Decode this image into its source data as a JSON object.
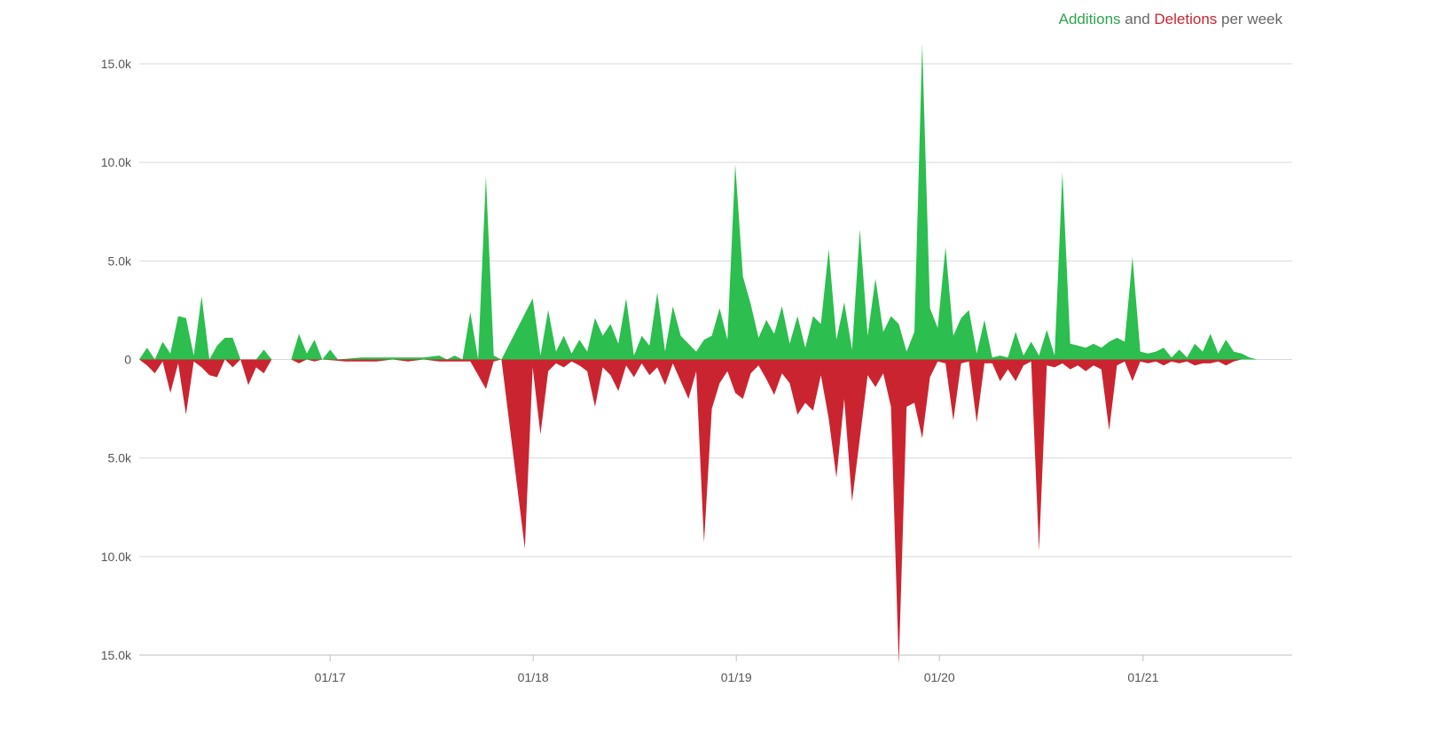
{
  "legend": {
    "additions_label": "Additions",
    "joiner": "and",
    "deletions_label": "Deletions",
    "suffix": "per week"
  },
  "colors": {
    "additions": "#2cbe4e",
    "deletions": "#cb2431",
    "grid": "#d9d9d9"
  },
  "chart_data": {
    "type": "area",
    "title": "",
    "legend": [
      "Additions",
      "Deletions"
    ],
    "y_ticks": [
      "15.0k",
      "10.0k",
      "5.0k",
      "0",
      "5.0k",
      "10.0k",
      "15.0k"
    ],
    "ylim": [
      -15000,
      15000
    ],
    "x_ticks": [
      {
        "label": "01/17",
        "x": "2017-01-01"
      },
      {
        "label": "01/18",
        "x": "2018-01-01"
      },
      {
        "label": "01/19",
        "x": "2019-01-01"
      },
      {
        "label": "01/20",
        "x": "2020-01-01"
      },
      {
        "label": "01/21",
        "x": "2021-01-01"
      }
    ],
    "xlim": [
      "2016-01-24",
      "2021-09-26"
    ],
    "grid": true,
    "legend_position": "top-right",
    "series": [
      {
        "name": "Additions",
        "points": [
          [
            "2016-01-24",
            0
          ],
          [
            "2016-02-07",
            600
          ],
          [
            "2016-02-21",
            0
          ],
          [
            "2016-03-06",
            900
          ],
          [
            "2016-03-20",
            300
          ],
          [
            "2016-04-03",
            2200
          ],
          [
            "2016-04-17",
            2100
          ],
          [
            "2016-05-01",
            200
          ],
          [
            "2016-05-15",
            3200
          ],
          [
            "2016-05-29",
            0
          ],
          [
            "2016-06-12",
            700
          ],
          [
            "2016-06-26",
            1100
          ],
          [
            "2016-07-10",
            1100
          ],
          [
            "2016-07-24",
            0
          ],
          [
            "2016-08-21",
            0
          ],
          [
            "2016-09-04",
            500
          ],
          [
            "2016-09-18",
            0
          ],
          [
            "2016-10-23",
            0
          ],
          [
            "2016-11-06",
            1300
          ],
          [
            "2016-11-20",
            300
          ],
          [
            "2016-12-04",
            1000
          ],
          [
            "2016-12-18",
            0
          ],
          [
            "2017-01-01",
            500
          ],
          [
            "2017-01-15",
            0
          ],
          [
            "2017-02-26",
            100
          ],
          [
            "2017-03-26",
            100
          ],
          [
            "2017-04-23",
            100
          ],
          [
            "2017-05-21",
            100
          ],
          [
            "2017-06-18",
            100
          ],
          [
            "2017-07-16",
            200
          ],
          [
            "2017-07-30",
            0
          ],
          [
            "2017-08-13",
            200
          ],
          [
            "2017-08-27",
            0
          ],
          [
            "2017-09-10",
            2400
          ],
          [
            "2017-09-24",
            0
          ],
          [
            "2017-10-08",
            9300
          ],
          [
            "2017-10-22",
            200
          ],
          [
            "2017-11-05",
            0
          ],
          [
            "2017-12-31",
            3100
          ],
          [
            "2018-01-14",
            200
          ],
          [
            "2018-01-28",
            2500
          ],
          [
            "2018-02-11",
            400
          ],
          [
            "2018-02-25",
            1200
          ],
          [
            "2018-03-11",
            300
          ],
          [
            "2018-03-25",
            1000
          ],
          [
            "2018-04-08",
            400
          ],
          [
            "2018-04-22",
            2100
          ],
          [
            "2018-05-06",
            1200
          ],
          [
            "2018-05-20",
            1800
          ],
          [
            "2018-06-03",
            800
          ],
          [
            "2018-06-17",
            3100
          ],
          [
            "2018-07-01",
            200
          ],
          [
            "2018-07-15",
            1200
          ],
          [
            "2018-07-29",
            700
          ],
          [
            "2018-08-12",
            3400
          ],
          [
            "2018-08-26",
            400
          ],
          [
            "2018-09-09",
            2700
          ],
          [
            "2018-09-23",
            1200
          ],
          [
            "2018-10-07",
            800
          ],
          [
            "2018-10-21",
            400
          ],
          [
            "2018-11-04",
            1000
          ],
          [
            "2018-11-18",
            1200
          ],
          [
            "2018-12-02",
            2600
          ],
          [
            "2018-12-16",
            1000
          ],
          [
            "2018-12-30",
            9900
          ],
          [
            "2019-01-13",
            4200
          ],
          [
            "2019-01-27",
            2800
          ],
          [
            "2019-02-10",
            1100
          ],
          [
            "2019-02-24",
            2000
          ],
          [
            "2019-03-10",
            1300
          ],
          [
            "2019-03-24",
            2700
          ],
          [
            "2019-04-07",
            800
          ],
          [
            "2019-04-21",
            2200
          ],
          [
            "2019-05-05",
            600
          ],
          [
            "2019-05-19",
            2200
          ],
          [
            "2019-06-02",
            1800
          ],
          [
            "2019-06-16",
            5600
          ],
          [
            "2019-06-30",
            1000
          ],
          [
            "2019-07-14",
            2900
          ],
          [
            "2019-07-28",
            500
          ],
          [
            "2019-08-11",
            6600
          ],
          [
            "2019-08-25",
            1200
          ],
          [
            "2019-09-08",
            4100
          ],
          [
            "2019-09-22",
            1400
          ],
          [
            "2019-10-06",
            2200
          ],
          [
            "2019-10-20",
            1800
          ],
          [
            "2019-11-03",
            400
          ],
          [
            "2019-11-17",
            1400
          ],
          [
            "2019-12-01",
            16000
          ],
          [
            "2019-12-15",
            2600
          ],
          [
            "2019-12-29",
            1600
          ],
          [
            "2020-01-12",
            5700
          ],
          [
            "2020-01-26",
            1200
          ],
          [
            "2020-02-09",
            2100
          ],
          [
            "2020-02-23",
            2500
          ],
          [
            "2020-03-08",
            300
          ],
          [
            "2020-03-22",
            2000
          ],
          [
            "2020-04-05",
            100
          ],
          [
            "2020-04-19",
            200
          ],
          [
            "2020-05-03",
            100
          ],
          [
            "2020-05-17",
            1400
          ],
          [
            "2020-05-31",
            200
          ],
          [
            "2020-06-14",
            900
          ],
          [
            "2020-06-28",
            200
          ],
          [
            "2020-07-12",
            1500
          ],
          [
            "2020-07-26",
            200
          ],
          [
            "2020-08-09",
            9500
          ],
          [
            "2020-08-23",
            800
          ],
          [
            "2020-09-06",
            700
          ],
          [
            "2020-09-20",
            600
          ],
          [
            "2020-10-04",
            800
          ],
          [
            "2020-10-18",
            600
          ],
          [
            "2020-11-01",
            900
          ],
          [
            "2020-11-15",
            1100
          ],
          [
            "2020-11-29",
            900
          ],
          [
            "2020-12-13",
            5200
          ],
          [
            "2020-12-27",
            400
          ],
          [
            "2021-01-10",
            300
          ],
          [
            "2021-01-24",
            400
          ],
          [
            "2021-02-07",
            600
          ],
          [
            "2021-02-21",
            100
          ],
          [
            "2021-03-07",
            500
          ],
          [
            "2021-03-21",
            100
          ],
          [
            "2021-04-04",
            800
          ],
          [
            "2021-04-18",
            400
          ],
          [
            "2021-05-02",
            1300
          ],
          [
            "2021-05-16",
            300
          ],
          [
            "2021-05-30",
            1000
          ],
          [
            "2021-06-13",
            400
          ],
          [
            "2021-06-27",
            300
          ],
          [
            "2021-07-11",
            100
          ],
          [
            "2021-07-25",
            0
          ],
          [
            "2021-09-26",
            0
          ]
        ]
      },
      {
        "name": "Deletions",
        "points": [
          [
            "2016-01-24",
            0
          ],
          [
            "2016-02-07",
            300
          ],
          [
            "2016-02-21",
            700
          ],
          [
            "2016-03-06",
            100
          ],
          [
            "2016-03-20",
            1700
          ],
          [
            "2016-04-03",
            200
          ],
          [
            "2016-04-17",
            2800
          ],
          [
            "2016-05-01",
            100
          ],
          [
            "2016-05-15",
            400
          ],
          [
            "2016-05-29",
            800
          ],
          [
            "2016-06-12",
            900
          ],
          [
            "2016-06-26",
            0
          ],
          [
            "2016-07-10",
            400
          ],
          [
            "2016-07-24",
            0
          ],
          [
            "2016-08-07",
            1300
          ],
          [
            "2016-08-21",
            400
          ],
          [
            "2016-09-04",
            700
          ],
          [
            "2016-09-18",
            0
          ],
          [
            "2016-10-23",
            0
          ],
          [
            "2016-11-06",
            200
          ],
          [
            "2016-11-20",
            0
          ],
          [
            "2016-12-04",
            100
          ],
          [
            "2016-12-18",
            0
          ],
          [
            "2017-01-29",
            100
          ],
          [
            "2017-03-26",
            100
          ],
          [
            "2017-04-23",
            0
          ],
          [
            "2017-05-21",
            100
          ],
          [
            "2017-06-18",
            0
          ],
          [
            "2017-07-16",
            100
          ],
          [
            "2017-08-13",
            100
          ],
          [
            "2017-09-10",
            100
          ],
          [
            "2017-09-24",
            800
          ],
          [
            "2017-10-08",
            1500
          ],
          [
            "2017-10-22",
            100
          ],
          [
            "2017-11-05",
            0
          ],
          [
            "2017-12-17",
            9600
          ],
          [
            "2017-12-31",
            400
          ],
          [
            "2018-01-14",
            3800
          ],
          [
            "2018-01-28",
            600
          ],
          [
            "2018-02-11",
            200
          ],
          [
            "2018-02-25",
            400
          ],
          [
            "2018-03-11",
            100
          ],
          [
            "2018-03-25",
            300
          ],
          [
            "2018-04-08",
            600
          ],
          [
            "2018-04-22",
            2400
          ],
          [
            "2018-05-06",
            400
          ],
          [
            "2018-05-20",
            800
          ],
          [
            "2018-06-03",
            1600
          ],
          [
            "2018-06-17",
            300
          ],
          [
            "2018-07-01",
            900
          ],
          [
            "2018-07-15",
            200
          ],
          [
            "2018-07-29",
            800
          ],
          [
            "2018-08-12",
            400
          ],
          [
            "2018-08-26",
            1300
          ],
          [
            "2018-09-09",
            200
          ],
          [
            "2018-09-23",
            1100
          ],
          [
            "2018-10-07",
            2000
          ],
          [
            "2018-10-21",
            600
          ],
          [
            "2018-11-04",
            9300
          ],
          [
            "2018-11-18",
            2500
          ],
          [
            "2018-12-02",
            1200
          ],
          [
            "2018-12-16",
            600
          ],
          [
            "2018-12-30",
            1700
          ],
          [
            "2019-01-13",
            2000
          ],
          [
            "2019-01-27",
            700
          ],
          [
            "2019-02-10",
            300
          ],
          [
            "2019-02-24",
            1000
          ],
          [
            "2019-03-10",
            1800
          ],
          [
            "2019-03-24",
            700
          ],
          [
            "2019-04-07",
            1200
          ],
          [
            "2019-04-21",
            2800
          ],
          [
            "2019-05-05",
            2200
          ],
          [
            "2019-05-19",
            2600
          ],
          [
            "2019-06-02",
            800
          ],
          [
            "2019-06-16",
            3000
          ],
          [
            "2019-06-30",
            6000
          ],
          [
            "2019-07-14",
            2000
          ],
          [
            "2019-07-28",
            7200
          ],
          [
            "2019-08-11",
            4000
          ],
          [
            "2019-08-25",
            800
          ],
          [
            "2019-09-08",
            1400
          ],
          [
            "2019-09-22",
            700
          ],
          [
            "2019-10-06",
            2400
          ],
          [
            "2019-10-20",
            15500
          ],
          [
            "2019-11-03",
            2400
          ],
          [
            "2019-11-17",
            2200
          ],
          [
            "2019-12-01",
            4000
          ],
          [
            "2019-12-15",
            900
          ],
          [
            "2019-12-29",
            100
          ],
          [
            "2020-01-12",
            200
          ],
          [
            "2020-01-26",
            3100
          ],
          [
            "2020-02-09",
            200
          ],
          [
            "2020-02-23",
            100
          ],
          [
            "2020-03-08",
            3200
          ],
          [
            "2020-03-22",
            200
          ],
          [
            "2020-04-05",
            200
          ],
          [
            "2020-04-19",
            1100
          ],
          [
            "2020-05-03",
            500
          ],
          [
            "2020-05-17",
            1100
          ],
          [
            "2020-05-31",
            300
          ],
          [
            "2020-06-14",
            100
          ],
          [
            "2020-06-28",
            9700
          ],
          [
            "2020-07-12",
            300
          ],
          [
            "2020-07-26",
            400
          ],
          [
            "2020-08-09",
            200
          ],
          [
            "2020-08-23",
            500
          ],
          [
            "2020-09-06",
            300
          ],
          [
            "2020-09-20",
            600
          ],
          [
            "2020-10-04",
            300
          ],
          [
            "2020-10-18",
            500
          ],
          [
            "2020-11-01",
            3600
          ],
          [
            "2020-11-15",
            300
          ],
          [
            "2020-11-29",
            100
          ],
          [
            "2020-12-13",
            1100
          ],
          [
            "2020-12-27",
            100
          ],
          [
            "2021-01-10",
            200
          ],
          [
            "2021-01-24",
            100
          ],
          [
            "2021-02-07",
            300
          ],
          [
            "2021-02-21",
            100
          ],
          [
            "2021-03-07",
            200
          ],
          [
            "2021-03-21",
            100
          ],
          [
            "2021-04-04",
            300
          ],
          [
            "2021-04-18",
            200
          ],
          [
            "2021-05-02",
            200
          ],
          [
            "2021-05-16",
            100
          ],
          [
            "2021-05-30",
            300
          ],
          [
            "2021-06-13",
            100
          ],
          [
            "2021-06-27",
            0
          ],
          [
            "2021-09-26",
            0
          ]
        ]
      }
    ]
  }
}
